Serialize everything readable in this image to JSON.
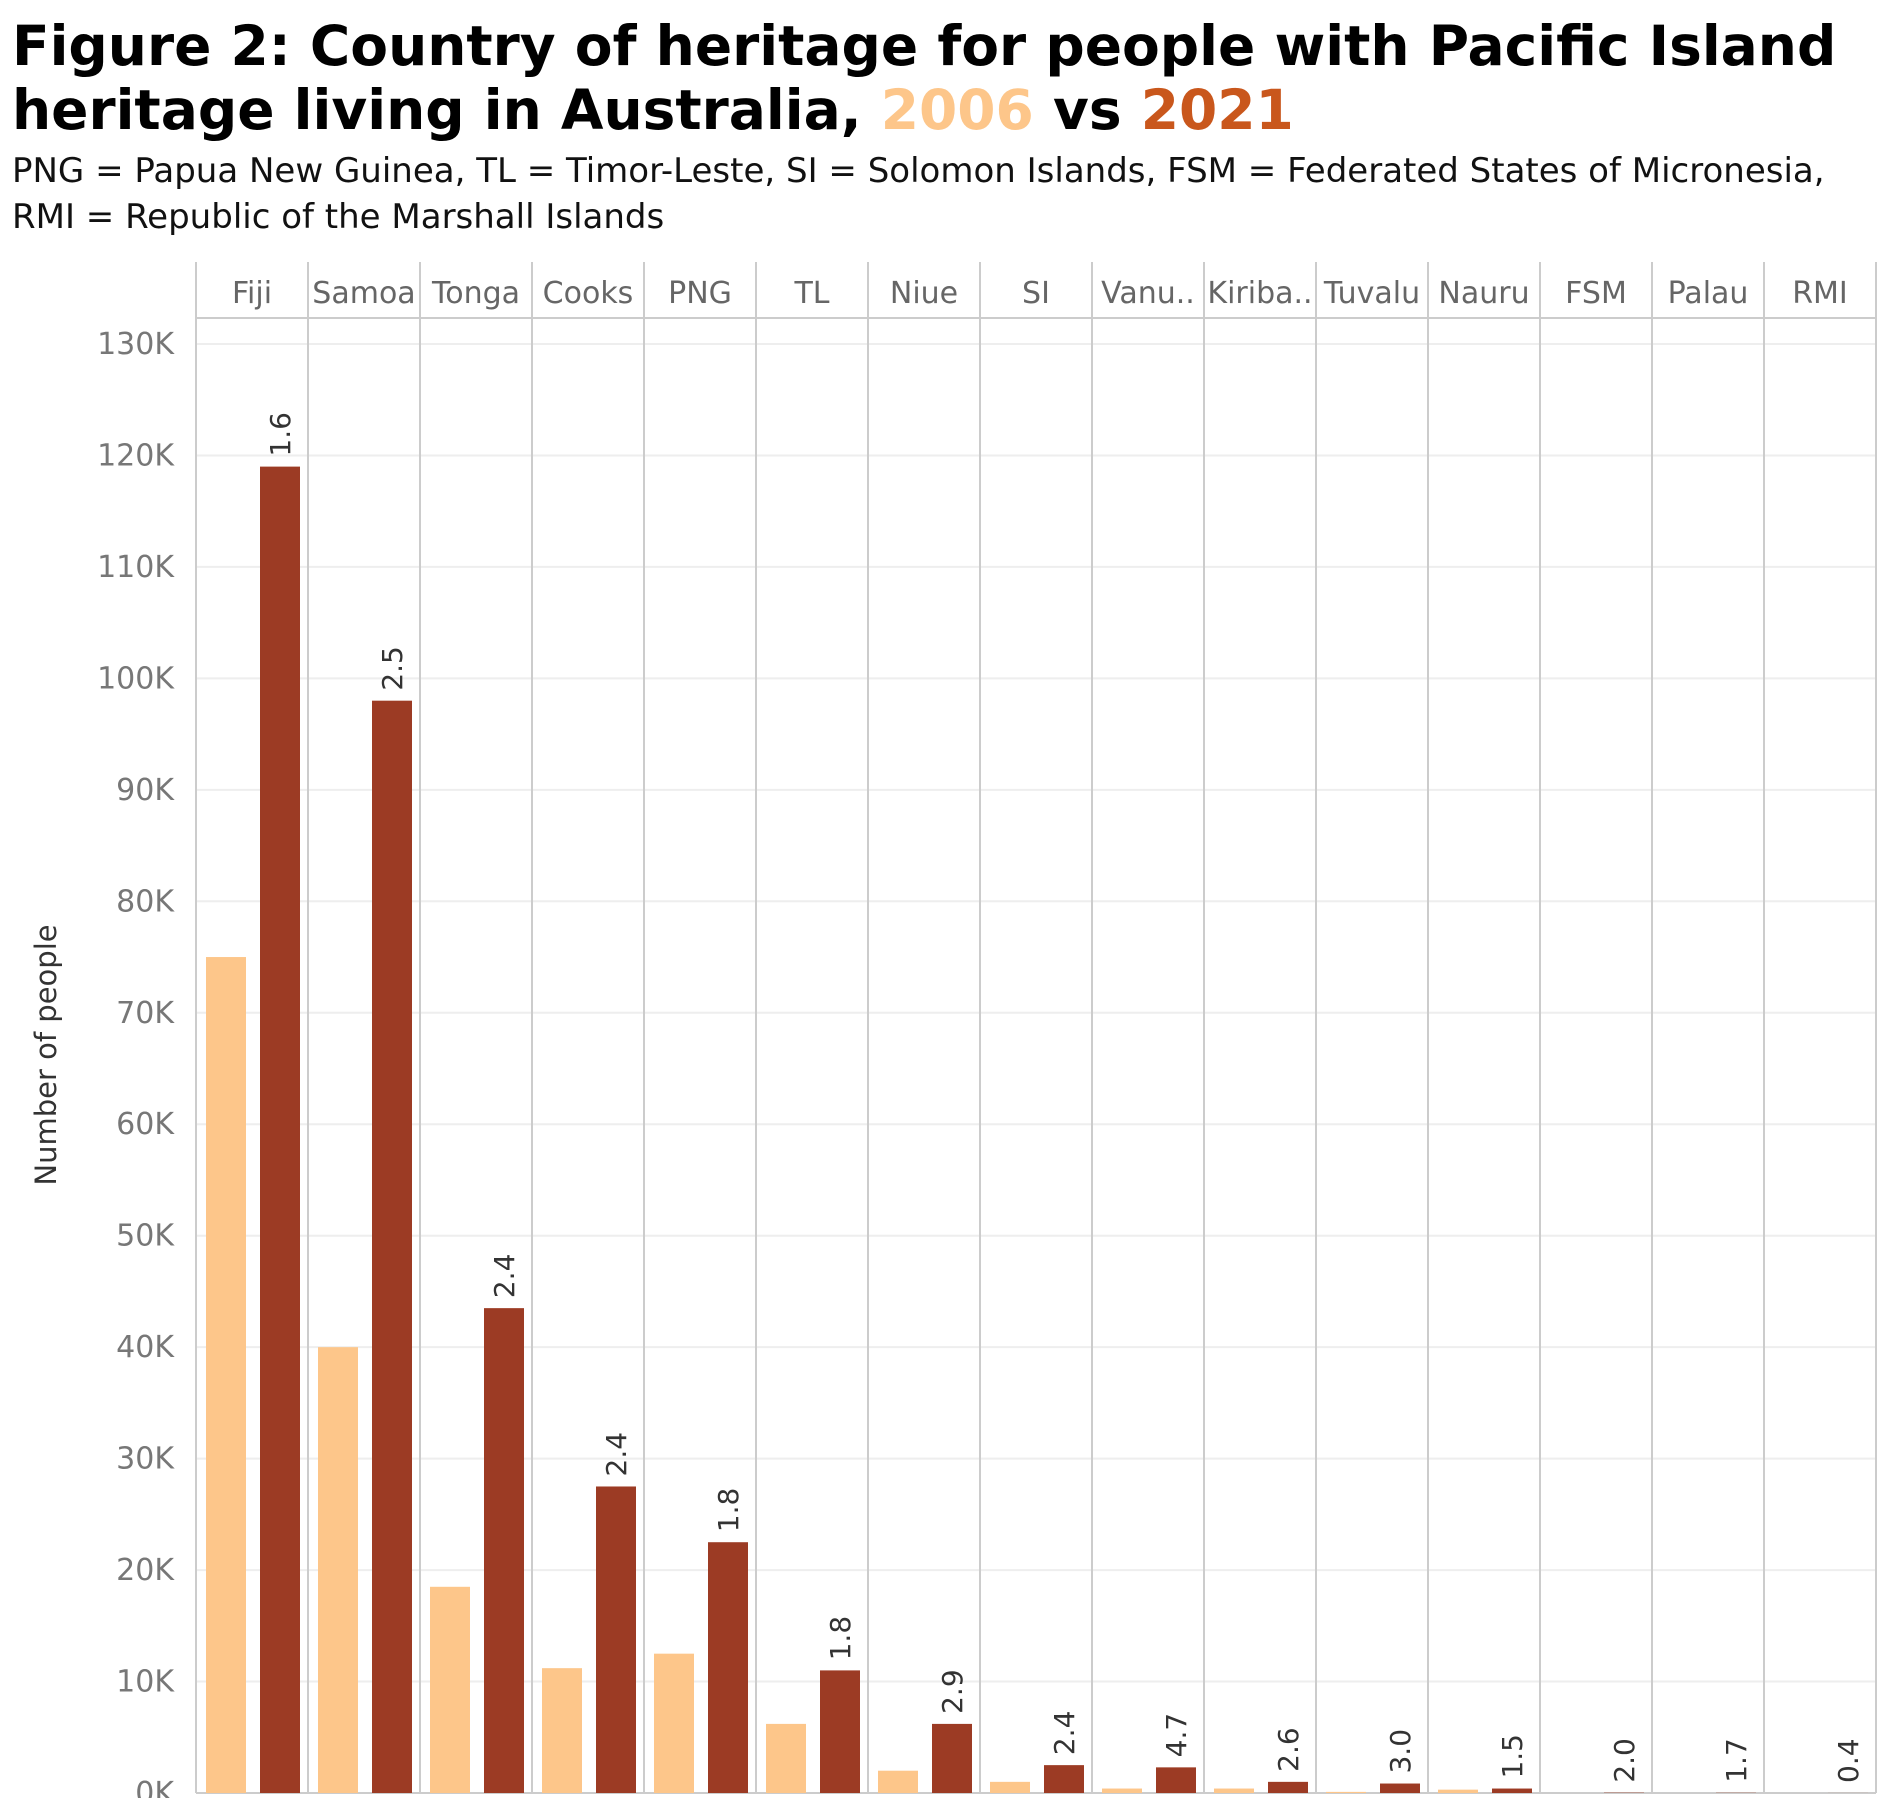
{
  "chart_data": {
    "type": "bar",
    "title": {
      "prefix": "Figure 2: Country of heritage for people with Pacific Island heritage living in Australia, ",
      "year_a": "2006",
      "joiner": " vs ",
      "year_b": "2021"
    },
    "subtitle": "PNG = Papua New Guinea, TL = Timor-Leste, SI = Solomon Islands, FSM = Federated States of Micronesia, RMI = Republic of the Marshall Islands",
    "ylabel": "Number of people",
    "xlabel": "",
    "ylim": [
      0,
      130000
    ],
    "yticks": [
      {
        "value": 0,
        "label": "0K"
      },
      {
        "value": 10000,
        "label": "10K"
      },
      {
        "value": 20000,
        "label": "20K"
      },
      {
        "value": 30000,
        "label": "30K"
      },
      {
        "value": 40000,
        "label": "40K"
      },
      {
        "value": 50000,
        "label": "50K"
      },
      {
        "value": 60000,
        "label": "60K"
      },
      {
        "value": 70000,
        "label": "70K"
      },
      {
        "value": 80000,
        "label": "80K"
      },
      {
        "value": 90000,
        "label": "90K"
      },
      {
        "value": 100000,
        "label": "100K"
      },
      {
        "value": 110000,
        "label": "110K"
      },
      {
        "value": 120000,
        "label": "120K"
      },
      {
        "value": 130000,
        "label": "130K"
      }
    ],
    "grid": true,
    "categories": [
      "Fiji",
      "Samoa",
      "Tonga",
      "Cooks",
      "PNG",
      "TL",
      "Niue",
      "SI",
      "Vanu..",
      "Kiriba..",
      "Tuvalu",
      "Nauru",
      "FSM",
      "Palau",
      "RMI"
    ],
    "series": [
      {
        "key": "2006",
        "color": "#fdc68a",
        "values": [
          75000,
          40000,
          18500,
          11200,
          12500,
          6200,
          2000,
          1000,
          400,
          400,
          100,
          300,
          0,
          0,
          0
        ]
      },
      {
        "key": "2021",
        "color": "#9c3b24",
        "values": [
          119000,
          98000,
          43500,
          27500,
          22500,
          11000,
          6200,
          2500,
          2300,
          1000,
          850,
          400,
          30,
          20,
          5
        ]
      }
    ],
    "data_labels": [
      "1.6",
      "2.5",
      "2.4",
      "2.4",
      "1.8",
      "1.8",
      "2.9",
      "2.4",
      "4.7",
      "2.6",
      "3.0",
      "1.5",
      "2.0",
      "1.7",
      "0.4"
    ]
  }
}
